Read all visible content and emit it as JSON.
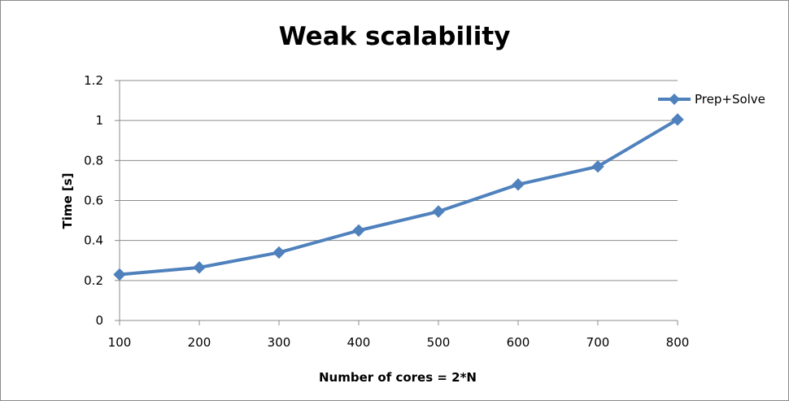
{
  "chart_data": {
    "type": "line",
    "title": "Weak scalability",
    "xlabel": "Number of cores = 2*N",
    "ylabel": "Time [s]",
    "x": [
      100,
      200,
      300,
      400,
      500,
      600,
      700,
      800
    ],
    "xlim": [
      100,
      800
    ],
    "ylim": [
      0,
      1.2
    ],
    "x_ticks": [
      "100",
      "200",
      "300",
      "400",
      "500",
      "600",
      "700",
      "800"
    ],
    "y_ticks": [
      "0",
      "0.2",
      "0.4",
      "0.6",
      "0.8",
      "1",
      "1.2"
    ],
    "y_tick_values": [
      0,
      0.2,
      0.4,
      0.6,
      0.8,
      1,
      1.2
    ],
    "grid": "horizontal",
    "legend_position": "right",
    "series": [
      {
        "name": "Prep+Solve",
        "values": [
          0.23,
          0.265,
          0.34,
          0.45,
          0.545,
          0.68,
          0.77,
          1.005
        ],
        "color": "#4F81BD",
        "marker": "diamond"
      }
    ]
  }
}
